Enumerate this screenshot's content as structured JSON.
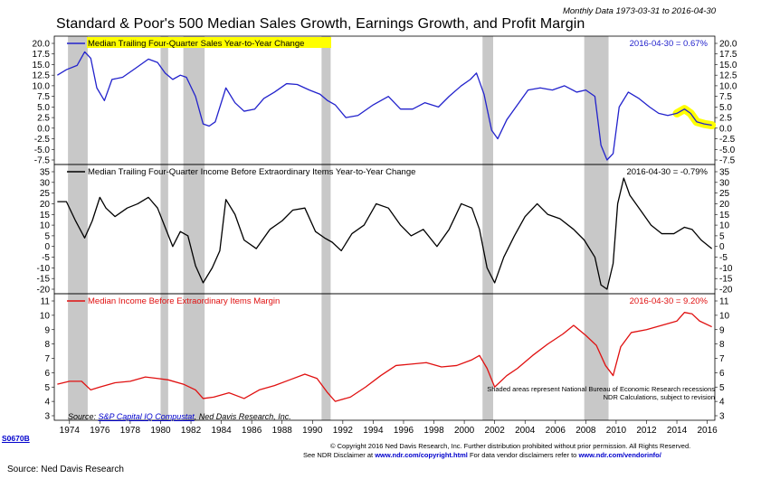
{
  "header": {
    "title": "Standard & Poor's 500 Median Sales Growth, Earnings Growth, and Profit Margin",
    "subtitle": "Monthly Data 1973-03-31 to 2016-04-30"
  },
  "source": {
    "prefix": "Source:",
    "link": "S&P Capital IQ Compustat",
    "rest": ", Ned Davis Research, Inc."
  },
  "chart_code": "S0670B",
  "shading_note": {
    "line1": "Shaded areas represent National Bureau of Economic Research recessions",
    "line2": "NDR Calculations, subject to revision"
  },
  "copyright": {
    "line1": "© Copyright 2016 Ned Davis Research, Inc. Further distribution prohibited without prior permission. All Rights Reserved.",
    "line2_a": "See NDR Disclaimer at",
    "link1": "www.ndr.com/copyright.html",
    "line2_b": "For data vendor disclaimers refer to",
    "link2": "www.ndr.com/vendorinfo/"
  },
  "footer": "Source: Ned Davis Research",
  "colors": {
    "sales": "#2222cc",
    "income": "#000000",
    "margin": "#e01010",
    "recession": "#c8c8c8",
    "highlight": "#ffff00"
  },
  "chart_data": [
    {
      "type": "line",
      "panel": "sales",
      "legend": "Median Trailing Four-Quarter Sales Year-to-Year Change",
      "latest": "2016-04-30 = 0.67%",
      "ylim": [
        -7.5,
        20
      ],
      "yticks": [
        "20.0",
        "17.5",
        "15.0",
        "12.5",
        "10.0",
        "7.5",
        "5.0",
        "2.5",
        "0.0",
        "-2.5",
        "-5.0",
        "-7.5"
      ],
      "x": [
        1973.2,
        1973.8,
        1974.5,
        1975.0,
        1975.4,
        1975.8,
        1976.3,
        1976.8,
        1977.5,
        1978.3,
        1979.2,
        1979.8,
        1980.3,
        1980.8,
        1981.3,
        1981.7,
        1982.3,
        1982.8,
        1983.2,
        1983.6,
        1984.3,
        1984.9,
        1985.5,
        1986.2,
        1986.8,
        1987.5,
        1988.3,
        1989.0,
        1989.8,
        1990.5,
        1991.0,
        1991.5,
        1992.2,
        1993.0,
        1994.0,
        1995.0,
        1995.8,
        1996.6,
        1997.4,
        1998.3,
        1999.0,
        1999.8,
        2000.4,
        2000.8,
        2001.3,
        2001.8,
        2002.2,
        2002.8,
        2003.5,
        2004.2,
        2005.0,
        2005.8,
        2006.6,
        2007.4,
        2008.0,
        2008.6,
        2009.0,
        2009.4,
        2009.8,
        2010.2,
        2010.8,
        2011.5,
        2012.2,
        2012.8,
        2013.4,
        2014.0,
        2014.5,
        2014.9,
        2015.3,
        2015.8,
        2016.3
      ],
      "y": [
        12.5,
        13.8,
        14.8,
        18.0,
        16.5,
        9.5,
        6.5,
        11.5,
        12.0,
        14.0,
        16.3,
        15.5,
        13.0,
        11.5,
        12.5,
        12.0,
        7.5,
        1.0,
        0.5,
        1.5,
        9.5,
        6.0,
        4.0,
        4.5,
        7.0,
        8.5,
        10.5,
        10.3,
        9.0,
        8.0,
        6.5,
        5.5,
        2.5,
        3.0,
        5.5,
        7.5,
        4.5,
        4.5,
        6.0,
        5.0,
        7.5,
        10.0,
        11.5,
        13.0,
        8.0,
        -0.5,
        -2.5,
        2.0,
        5.5,
        9.0,
        9.5,
        9.0,
        10.0,
        8.5,
        9.0,
        7.5,
        -4.0,
        -7.5,
        -6.0,
        5.0,
        8.5,
        7.0,
        5.0,
        3.5,
        3.0,
        3.5,
        4.5,
        3.5,
        1.5,
        1.0,
        0.7
      ]
    },
    {
      "type": "line",
      "panel": "income",
      "legend": "Median Trailing Four-Quarter Income Before Extraordinary Items Year-to-Year Change",
      "latest": "2016-04-30 = -0.79%",
      "ylim": [
        -20,
        35
      ],
      "yticks": [
        "35",
        "30",
        "25",
        "20",
        "15",
        "10",
        "5",
        "0",
        "-5",
        "-10",
        "-15",
        "-20"
      ],
      "x": [
        1973.2,
        1973.8,
        1974.4,
        1975.0,
        1975.5,
        1976.0,
        1976.4,
        1977.0,
        1977.8,
        1978.5,
        1979.2,
        1979.8,
        1980.3,
        1980.8,
        1981.3,
        1981.8,
        1982.3,
        1982.8,
        1983.4,
        1983.9,
        1984.3,
        1984.9,
        1985.5,
        1986.3,
        1987.2,
        1988.0,
        1988.7,
        1989.5,
        1990.2,
        1990.8,
        1991.3,
        1991.9,
        1992.6,
        1993.4,
        1994.2,
        1995.0,
        1995.8,
        1996.5,
        1997.3,
        1998.2,
        1999.0,
        1999.8,
        2000.5,
        2001.0,
        2001.5,
        2002.0,
        2002.6,
        2003.3,
        2004.0,
        2004.8,
        2005.5,
        2006.3,
        2007.2,
        2007.9,
        2008.6,
        2009.0,
        2009.4,
        2009.8,
        2010.1,
        2010.5,
        2010.9,
        2011.6,
        2012.3,
        2013.0,
        2013.8,
        2014.5,
        2015.0,
        2015.6,
        2016.3
      ],
      "y": [
        21,
        21,
        12,
        4,
        12,
        23,
        18,
        14,
        18,
        20,
        23,
        18,
        9,
        0,
        7,
        5,
        -9,
        -17,
        -10,
        -2,
        22,
        15,
        3,
        -1,
        8,
        12,
        17,
        18,
        7,
        4,
        2,
        -2,
        6,
        10,
        20,
        18,
        10,
        5,
        8,
        0,
        8,
        20,
        18,
        8,
        -10,
        -17,
        -5,
        5,
        14,
        20,
        15,
        13,
        8,
        3,
        -5,
        -18,
        -20,
        -8,
        20,
        32,
        24,
        17,
        10,
        6,
        6,
        9,
        8,
        3,
        -1
      ]
    },
    {
      "type": "line",
      "panel": "margin",
      "legend": "Median Income Before Extraordinary Items Margin",
      "latest": "2016-04-30 = 9.20%",
      "ylim": [
        3,
        11
      ],
      "yticks": [
        "11",
        "10",
        "9",
        "8",
        "7",
        "6",
        "5",
        "4",
        "3"
      ],
      "x": [
        1973.2,
        1974.0,
        1974.8,
        1975.4,
        1976.0,
        1977.0,
        1978.0,
        1979.0,
        1979.8,
        1980.5,
        1981.5,
        1982.3,
        1982.8,
        1983.5,
        1984.5,
        1985.5,
        1986.5,
        1987.5,
        1988.5,
        1989.5,
        1990.3,
        1991.0,
        1991.5,
        1992.5,
        1993.5,
        1994.5,
        1995.5,
        1996.5,
        1997.5,
        1998.5,
        1999.5,
        2000.5,
        2001.0,
        2001.5,
        2002.0,
        2002.8,
        2003.5,
        2004.5,
        2005.5,
        2006.5,
        2007.2,
        2008.0,
        2008.7,
        2009.3,
        2009.8,
        2010.3,
        2011.0,
        2012.0,
        2013.0,
        2014.0,
        2014.5,
        2015.0,
        2015.5,
        2016.3
      ],
      "y": [
        5.2,
        5.4,
        5.4,
        4.8,
        5.0,
        5.3,
        5.4,
        5.7,
        5.6,
        5.5,
        5.2,
        4.8,
        4.2,
        4.3,
        4.6,
        4.2,
        4.8,
        5.1,
        5.5,
        5.9,
        5.6,
        4.6,
        4.0,
        4.3,
        5.0,
        5.8,
        6.5,
        6.6,
        6.7,
        6.4,
        6.5,
        6.9,
        7.2,
        6.3,
        5.0,
        5.8,
        6.3,
        7.2,
        8.0,
        8.7,
        9.3,
        8.6,
        7.9,
        6.5,
        5.8,
        7.8,
        8.8,
        9.0,
        9.3,
        9.6,
        10.2,
        10.1,
        9.6,
        9.2
      ]
    }
  ],
  "x_axis": {
    "ticks": [
      "1974",
      "1976",
      "1978",
      "1980",
      "1982",
      "1984",
      "1986",
      "1988",
      "1990",
      "1992",
      "1994",
      "1996",
      "1998",
      "2000",
      "2002",
      "2004",
      "2006",
      "2008",
      "2010",
      "2012",
      "2014",
      "2016"
    ]
  },
  "recessions": [
    [
      1973.9,
      1975.2
    ],
    [
      1980.0,
      1980.5
    ],
    [
      1981.5,
      1982.9
    ],
    [
      1990.6,
      1991.2
    ],
    [
      2001.2,
      2001.9
    ],
    [
      2007.9,
      2009.5
    ]
  ]
}
